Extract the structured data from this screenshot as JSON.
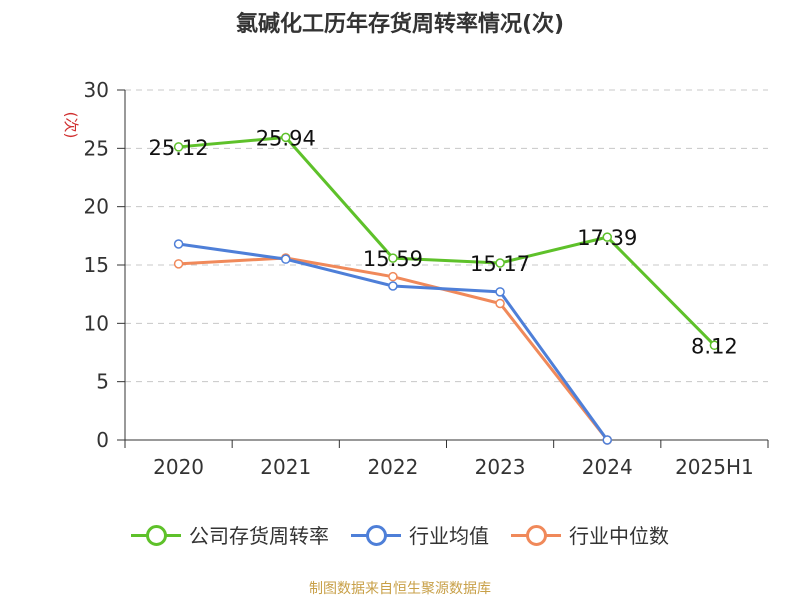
{
  "chart_data": {
    "type": "line",
    "title": "氯碱化工历年存货周转率情况(次)",
    "ylabel": "(次)",
    "categories": [
      "2020",
      "2021",
      "2022",
      "2023",
      "2024",
      "2025H1"
    ],
    "ylim": [
      0,
      30
    ],
    "yticks": [
      0,
      5,
      10,
      15,
      20,
      25,
      30
    ],
    "grid": true,
    "legend_position": "bottom",
    "series": [
      {
        "name": "公司存货周转率",
        "color": "#5ec12a",
        "values": [
          25.12,
          25.94,
          15.59,
          15.17,
          17.39,
          8.12
        ],
        "labels": [
          "25.12",
          "25.94",
          "15.59",
          "15.17",
          "17.39",
          "8.12"
        ]
      },
      {
        "name": "行业均值",
        "color": "#4e7fd8",
        "values": [
          16.8,
          15.5,
          13.2,
          12.7,
          0,
          null
        ]
      },
      {
        "name": "行业中位数",
        "color": "#f0895a",
        "values": [
          15.1,
          15.6,
          14.0,
          11.7,
          0,
          null
        ]
      }
    ]
  },
  "source_text": "制图数据来自恒生聚源数据库"
}
